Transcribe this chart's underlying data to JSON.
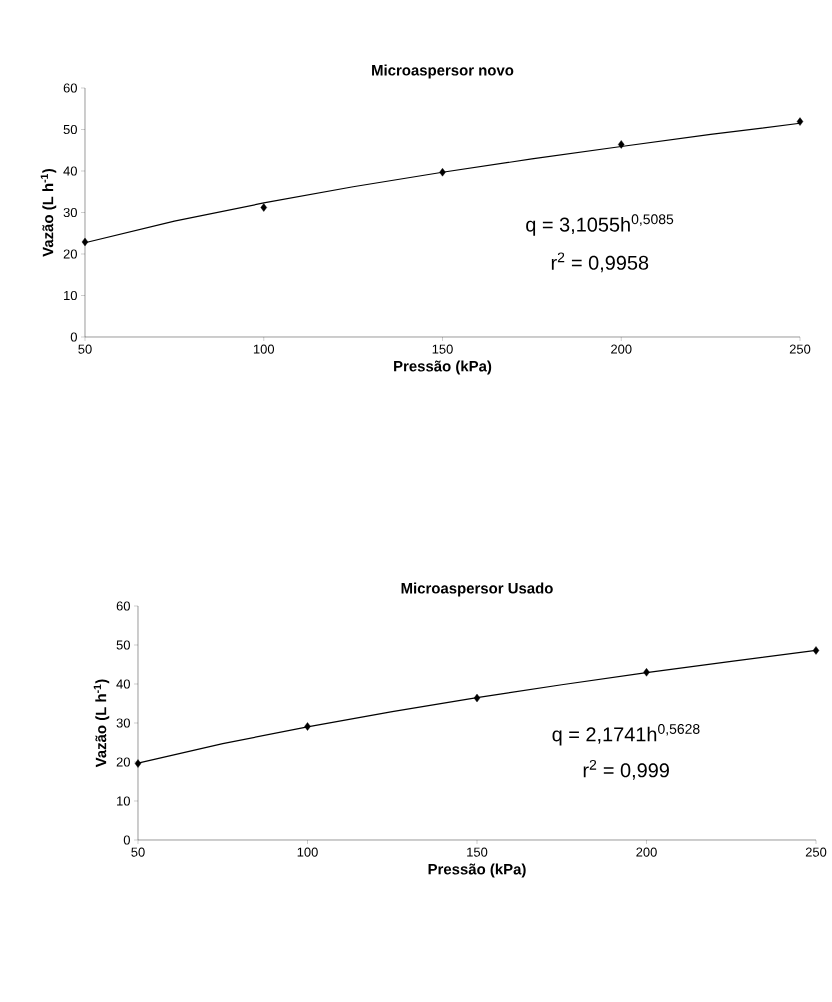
{
  "chart_data": [
    {
      "type": "scatter",
      "title": "Microaspersor novo",
      "xlabel": "Pressão (kPa)",
      "ylabel": "Vazão (L h$^{-1}$)",
      "x": [
        50,
        100,
        150,
        200,
        250
      ],
      "xlim": [
        50,
        250
      ],
      "ylim": [
        0,
        60
      ],
      "xticks": [
        50,
        100,
        150,
        200,
        250
      ],
      "yticks": [
        0,
        10,
        20,
        30,
        40,
        50,
        60
      ],
      "grid": false,
      "series": [
        {
          "color": "#000000",
          "marker": "diamond",
          "values": [
            22.9,
            31.2,
            39.7,
            46.4,
            51.9
          ]
        },
        {
          "type": "line",
          "color": "#000000",
          "line_style": "solid",
          "x": [
            50,
            75,
            100,
            125,
            150,
            175,
            200,
            225,
            250
          ],
          "values": [
            22.7,
            27.9,
            32.3,
            36.2,
            39.7,
            42.9,
            45.9,
            48.8,
            51.5
          ]
        }
      ],
      "annotations": [
        "q = 3,1055h$^{0,5085}$",
        "r$^{2}$ = 0,9958"
      ]
    },
    {
      "type": "scatter",
      "title": "Microaspersor Usado",
      "xlabel": "Pressão (kPa)",
      "ylabel": "Vazão (L h$^{-1}$)",
      "x": [
        50,
        100,
        150,
        200,
        250
      ],
      "xlim": [
        50,
        250
      ],
      "ylim": [
        0,
        60
      ],
      "xticks": [
        50,
        100,
        150,
        200,
        250
      ],
      "yticks": [
        0,
        10,
        20,
        30,
        40,
        50,
        60
      ],
      "grid": false,
      "series": [
        {
          "color": "#000000",
          "marker": "diamond",
          "values": [
            19.6,
            29.1,
            36.4,
            43.0,
            48.6
          ]
        },
        {
          "type": "line",
          "color": "#000000",
          "line_style": "solid",
          "x": [
            50,
            75,
            100,
            125,
            150,
            175,
            200,
            225,
            250
          ],
          "values": [
            19.7,
            24.7,
            29.0,
            32.9,
            36.5,
            39.8,
            42.9,
            45.8,
            48.6
          ]
        }
      ],
      "annotations": [
        "q = 2,1741h$^{0,5628}$",
        "r$^{2}$ = 0,999"
      ]
    }
  ]
}
